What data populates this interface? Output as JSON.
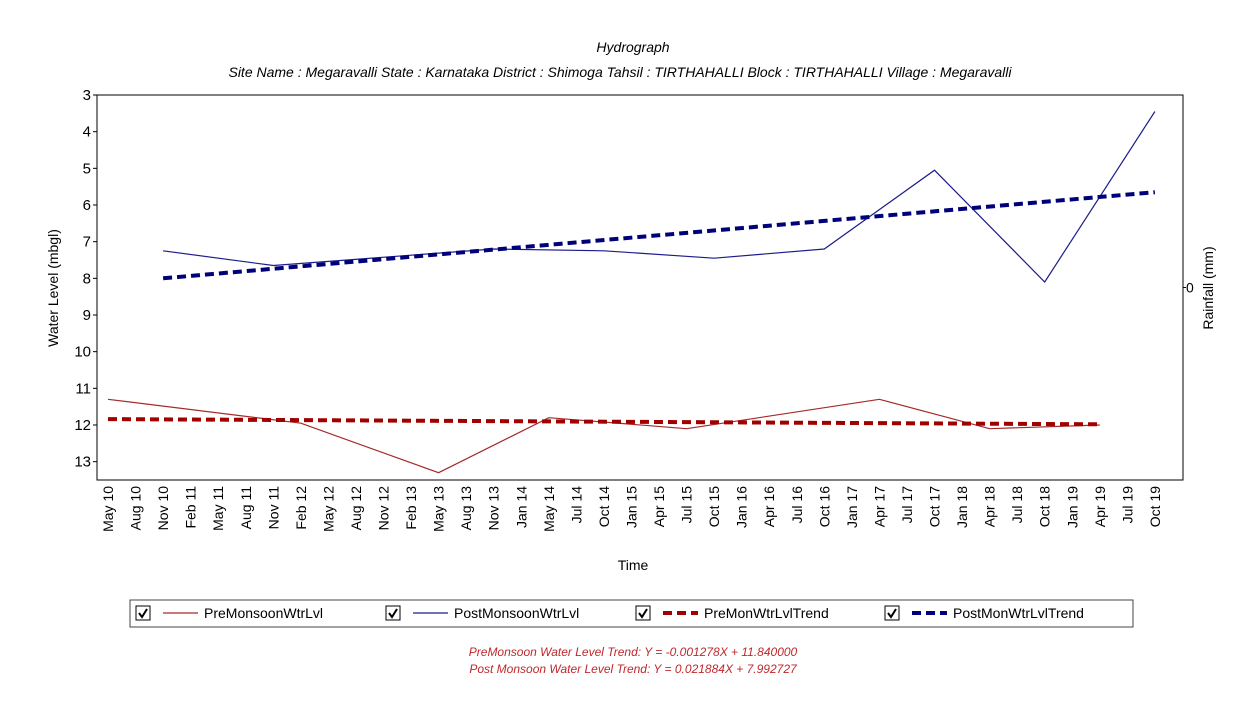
{
  "chart_data": {
    "type": "line",
    "title": "Hydrograph",
    "subtitle": "Site Name : Megaravalli  State : Karnataka District : Shimoga  Tahsil : TIRTHAHALLI  Block : TIRTHAHALLI Village : Megaravalli",
    "x_label": "Time",
    "y_label": "Water Level (mbgl)",
    "y2_label": "Rainfall (mm)",
    "categories": [
      "May 10",
      "Aug 10",
      "Nov 10",
      "Feb 11",
      "May 11",
      "Aug 11",
      "Nov 11",
      "Feb 12",
      "May 12",
      "Aug 12",
      "Nov 12",
      "Feb 13",
      "May 13",
      "Aug 13",
      "Nov 13",
      "Jan 14",
      "May 14",
      "Jul 14",
      "Oct 14",
      "Jan 15",
      "Apr 15",
      "Jul 15",
      "Oct 15",
      "Jan 16",
      "Apr 16",
      "Jul 16",
      "Oct 16",
      "Jan 17",
      "Apr 17",
      "Jul 17",
      "Oct 17",
      "Jan 18",
      "Apr 18",
      "Jul 18",
      "Oct 18",
      "Jan 19",
      "Apr 19",
      "Jul 19",
      "Oct 19"
    ],
    "ylim": [
      3,
      13.5
    ],
    "yticks": [
      3,
      4,
      5,
      6,
      7,
      8,
      9,
      10,
      11,
      12,
      13
    ],
    "y_inverted": true,
    "y2lim": [
      -1,
      1
    ],
    "y2ticks": [
      0
    ],
    "series": [
      {
        "name": "PreMonsoonWtrLvl",
        "color": "#a52a2a",
        "dashed": false,
        "x": [
          "May 10",
          "Feb 12",
          "May 13",
          "May 14",
          "Jul 15",
          "Apr 17",
          "Apr 18",
          "Apr 19"
        ],
        "values": [
          11.3,
          11.95,
          13.3,
          11.8,
          12.1,
          11.3,
          12.1,
          12.0
        ]
      },
      {
        "name": "PostMonsoonWtrLvl",
        "color": "#1c1c8c",
        "dashed": false,
        "x": [
          "Nov 10",
          "Nov 11",
          "Nov 13",
          "Oct 14",
          "Oct 15",
          "Oct 16",
          "Oct 17",
          "Oct 18",
          "Oct 19"
        ],
        "values": [
          7.25,
          7.65,
          7.2,
          7.25,
          7.45,
          7.2,
          5.05,
          8.1,
          3.45
        ]
      },
      {
        "name": "PreMonWtrLvlTrend",
        "color": "#a00000",
        "dashed": true,
        "x": [
          "May 10",
          "Apr 19"
        ],
        "values": [
          11.84,
          11.98
        ]
      },
      {
        "name": "PostMonWtrLvlTrend",
        "color": "#00007a",
        "dashed": true,
        "x": [
          "Nov 10",
          "Oct 19"
        ],
        "values": [
          8.0,
          5.65
        ]
      }
    ],
    "annotations": [
      "PreMonsoon Water Level Trend: Y = -0.001278X + 11.840000",
      "Post Monsoon Water Level Trend: Y = 0.021884X + 7.992727"
    ]
  }
}
